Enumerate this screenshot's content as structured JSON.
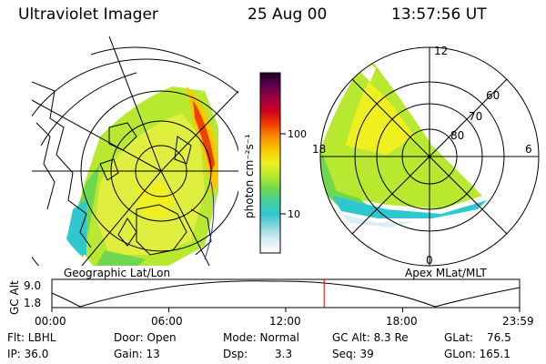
{
  "header": {
    "title": "Ultraviolet Imager",
    "date": "25 Aug 00",
    "time": "13:57:56 UT"
  },
  "geo_panel": {
    "label": "Geographic Lat/Lon"
  },
  "apex_panel": {
    "label": "Apex MLat/MLT",
    "mlt_labels": {
      "top": "12",
      "left": "18",
      "right": "6",
      "bottom": "0"
    },
    "mlat_labels": [
      "60",
      "70",
      "80"
    ]
  },
  "colorbar": {
    "label": "photon cm⁻²s⁻¹",
    "scale": "log",
    "ticks": [
      "100",
      "10"
    ],
    "colors": [
      "#ffffff",
      "#d8eef2",
      "#8fd8e0",
      "#30c8d0",
      "#40d0a0",
      "#70d850",
      "#b8e830",
      "#f0f020",
      "#f8c800",
      "#f89000",
      "#f04000",
      "#d00020",
      "#a00040",
      "#600050",
      "#200020"
    ]
  },
  "altitude_plot": {
    "ylabel": "GC Alt",
    "y_ticks": [
      "9.0",
      "1.8"
    ],
    "x_ticks": [
      "00:00",
      "06:00",
      "12:00",
      "18:00",
      "23:59"
    ],
    "marker_time_hours": 13.97,
    "marker_color": "#e00000"
  },
  "info": {
    "row1": [
      "Flt: LBHL",
      "Door: Open",
      "Mode: Normal",
      "GC Alt: 8.3 Re",
      "GLat:",
      "76.5"
    ],
    "row2": [
      "IP: 36.0",
      "Gain: 13",
      "Dsp:",
      "3.3",
      "Seq: 39",
      "GLon: 165.1"
    ]
  }
}
